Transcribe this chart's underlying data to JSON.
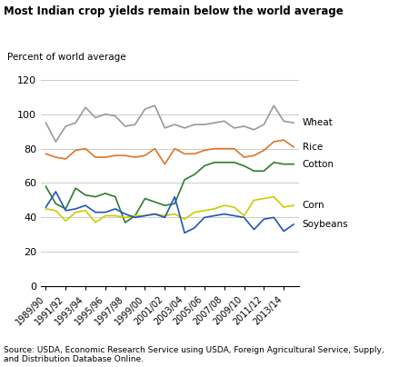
{
  "title": "Most Indian crop yields remain below the world average",
  "ylabel": "Percent of world average",
  "source": "Source: USDA, Economic Research Service using USDA, Foreign Agricultural Service, Supply,\nand Distribution Database Online.",
  "x_labels": [
    "1989/90",
    "1991/92",
    "1993/94",
    "1995/96",
    "1997/98",
    "1999/00",
    "2001/02",
    "2003/04",
    "2005/06",
    "2007/08",
    "2009/10",
    "2011/12",
    "2013/14"
  ],
  "ylim": [
    0,
    128
  ],
  "yticks": [
    0,
    20,
    40,
    60,
    80,
    100,
    120
  ],
  "wheat": [
    95,
    84,
    93,
    95,
    104,
    98,
    100,
    99,
    93,
    94,
    103,
    105,
    92,
    94,
    92,
    94,
    94,
    95,
    96,
    92,
    93,
    91,
    94,
    105,
    96,
    95
  ],
  "rice": [
    77,
    75,
    74,
    79,
    80,
    75,
    75,
    76,
    76,
    75,
    76,
    80,
    71,
    80,
    77,
    77,
    79,
    80,
    80,
    80,
    75,
    76,
    79,
    84,
    85,
    81
  ],
  "cotton": [
    58,
    48,
    45,
    57,
    53,
    52,
    54,
    52,
    37,
    41,
    51,
    49,
    47,
    48,
    62,
    65,
    70,
    72,
    72,
    72,
    70,
    67,
    67,
    72,
    71,
    71
  ],
  "corn": [
    45,
    44,
    38,
    43,
    44,
    37,
    41,
    41,
    40,
    41,
    41,
    42,
    41,
    42,
    39,
    43,
    44,
    45,
    47,
    46,
    41,
    50,
    51,
    52,
    46,
    47
  ],
  "soybeans": [
    46,
    55,
    44,
    45,
    47,
    43,
    43,
    45,
    42,
    40,
    41,
    42,
    40,
    52,
    31,
    34,
    40,
    41,
    42,
    41,
    40,
    33,
    39,
    40,
    32,
    36
  ],
  "wheat_color": "#999999",
  "rice_color": "#e07428",
  "cotton_color": "#2d7d2d",
  "corn_color": "#cccc00",
  "soybeans_color": "#2255bb",
  "n_years": 26,
  "xtick_step": 2
}
